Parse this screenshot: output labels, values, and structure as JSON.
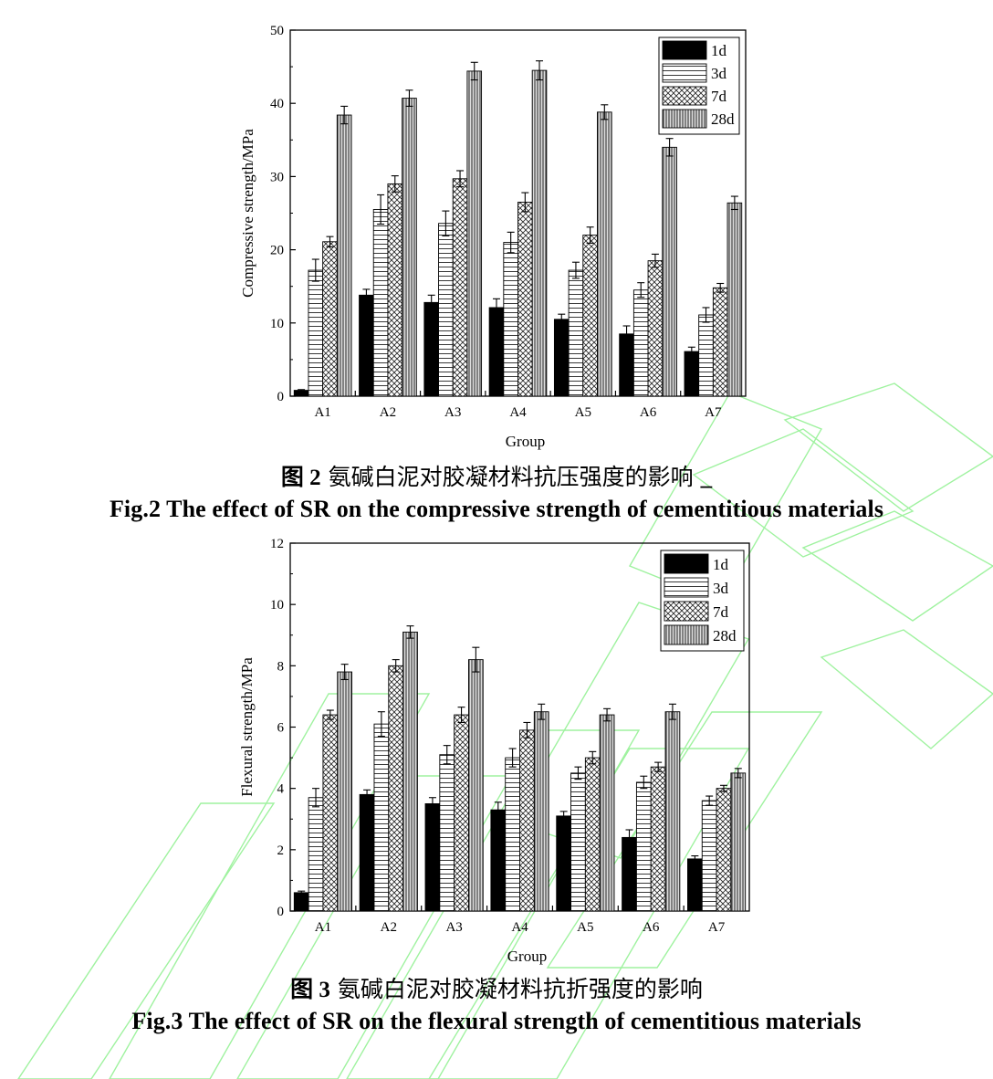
{
  "figures": [
    {
      "caption_cn_prefix": "图 2",
      "caption_cn": "氨碱白泥对胶凝材料抗压强度的影响",
      "caption_cn_suffix": "_",
      "caption_en": "Fig.2 The effect of SR on the compressive strength of cementitious materials"
    },
    {
      "caption_cn_prefix": "图 3",
      "caption_cn": "氨碱白泥对胶凝材料抗折强度的影响",
      "caption_en": "Fig.3 The effect of SR on the flexural strength of cementitious materials"
    }
  ],
  "chart_data": [
    {
      "type": "bar",
      "xlabel": "Group",
      "ylabel": "Compressive strength/MPa",
      "ylim": [
        0,
        50
      ],
      "yticks": [
        0,
        10,
        20,
        30,
        40,
        50
      ],
      "categories": [
        "A1",
        "A2",
        "A3",
        "A4",
        "A5",
        "A6",
        "A7"
      ],
      "legend_position": "top-right",
      "error_bars": true,
      "series": [
        {
          "name": "1d",
          "pattern": "solid-black",
          "values": [
            0.8,
            13.8,
            12.8,
            12.1,
            10.5,
            8.5,
            6.1
          ],
          "errors": [
            0.1,
            0.8,
            1.0,
            1.2,
            0.7,
            1.1,
            0.6
          ]
        },
        {
          "name": "3d",
          "pattern": "horizontal-lines",
          "values": [
            17.2,
            25.5,
            23.6,
            21.0,
            17.2,
            14.5,
            11.1
          ],
          "errors": [
            1.5,
            2.0,
            1.7,
            1.4,
            1.1,
            1.0,
            1.0
          ]
        },
        {
          "name": "7d",
          "pattern": "crosshatch",
          "values": [
            21.1,
            29.0,
            29.7,
            26.5,
            22.0,
            18.5,
            14.8
          ],
          "errors": [
            0.7,
            1.1,
            1.1,
            1.3,
            1.1,
            0.9,
            0.6
          ]
        },
        {
          "name": "28d",
          "pattern": "vertical-lines",
          "values": [
            38.4,
            40.7,
            44.4,
            44.5,
            38.8,
            34.0,
            26.4
          ],
          "errors": [
            1.2,
            1.1,
            1.2,
            1.3,
            1.0,
            1.2,
            0.9
          ]
        }
      ]
    },
    {
      "type": "bar",
      "xlabel": "Group",
      "ylabel": "Flexural strength/MPa",
      "ylim": [
        0,
        12
      ],
      "yticks": [
        0,
        2,
        4,
        6,
        8,
        10,
        12
      ],
      "categories": [
        "A1",
        "A2",
        "A3",
        "A4",
        "A5",
        "A6",
        "A7"
      ],
      "legend_position": "top-right",
      "error_bars": true,
      "series": [
        {
          "name": "1d",
          "pattern": "solid-black",
          "values": [
            0.6,
            3.8,
            3.5,
            3.3,
            3.1,
            2.4,
            1.7
          ],
          "errors": [
            0.05,
            0.15,
            0.2,
            0.25,
            0.15,
            0.25,
            0.1
          ]
        },
        {
          "name": "3d",
          "pattern": "horizontal-lines",
          "values": [
            3.7,
            6.1,
            5.1,
            5.0,
            4.5,
            4.2,
            3.6
          ],
          "errors": [
            0.3,
            0.4,
            0.3,
            0.3,
            0.2,
            0.2,
            0.15
          ]
        },
        {
          "name": "7d",
          "pattern": "crosshatch",
          "values": [
            6.4,
            8.0,
            6.4,
            5.9,
            5.0,
            4.7,
            4.0
          ],
          "errors": [
            0.15,
            0.2,
            0.25,
            0.25,
            0.2,
            0.15,
            0.1
          ]
        },
        {
          "name": "28d",
          "pattern": "vertical-lines",
          "values": [
            7.8,
            9.1,
            8.2,
            6.5,
            6.4,
            6.5,
            4.5
          ],
          "errors": [
            0.25,
            0.2,
            0.4,
            0.25,
            0.2,
            0.25,
            0.15
          ]
        }
      ]
    }
  ]
}
